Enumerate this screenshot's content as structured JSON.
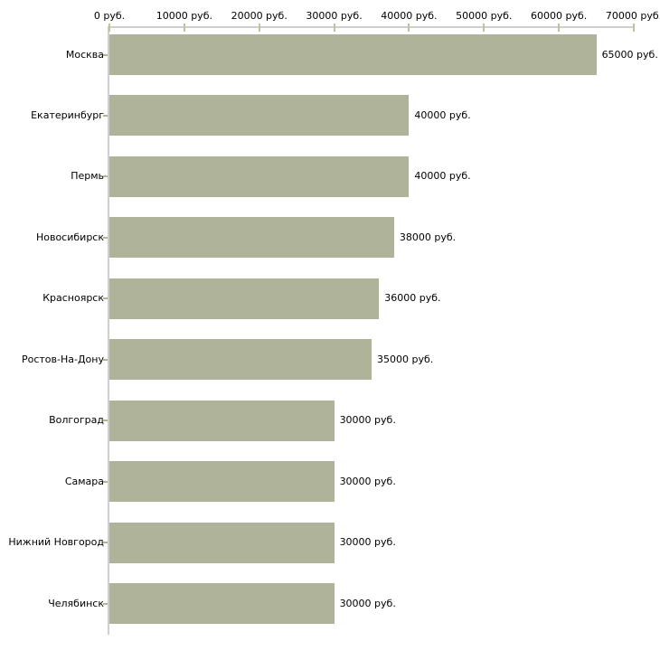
{
  "chart_data": {
    "type": "bar",
    "orientation": "horizontal",
    "title": "",
    "unit": "руб.",
    "categories": [
      "Москва",
      "Екатеринбург",
      "Пермь",
      "Новосибирск",
      "Красноярск",
      "Ростов-На-Дону",
      "Волгоград",
      "Самара",
      "Нижний Новгород",
      "Челябинск"
    ],
    "values": [
      65000,
      40000,
      40000,
      38000,
      36000,
      35000,
      30000,
      30000,
      30000,
      30000
    ],
    "value_labels": [
      "65000 руб.",
      "40000 руб.",
      "40000 руб.",
      "38000 руб.",
      "36000 руб.",
      "35000 руб.",
      "30000 руб.",
      "30000 руб.",
      "30000 руб.",
      "30000 руб."
    ],
    "x_axis": {
      "position": "top",
      "range": [
        0,
        70000
      ],
      "ticks": [
        0,
        10000,
        20000,
        30000,
        40000,
        50000,
        60000,
        70000
      ],
      "tick_labels": [
        "0 руб.",
        "10000 руб.",
        "20000 руб.",
        "30000 руб.",
        "40000 руб.",
        "50000 руб.",
        "60000 руб.",
        "70000 руб."
      ]
    },
    "grid": "off",
    "legend": "none",
    "colors": {
      "bar": "#afb39a",
      "axis_line": "#cfcfcf",
      "x_tick": "#c3c39b",
      "y_tick": "#b5b58b",
      "text": "#000000",
      "background": "#ffffff"
    }
  }
}
